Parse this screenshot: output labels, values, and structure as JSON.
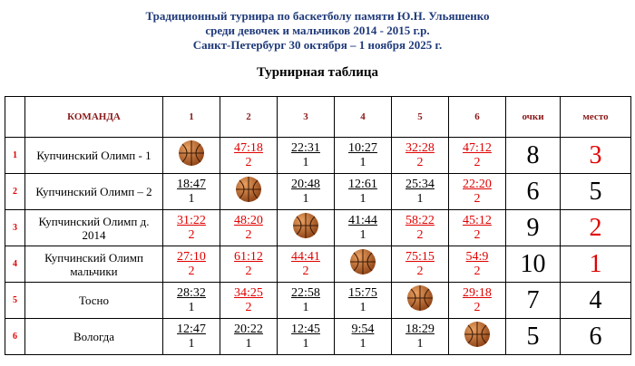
{
  "header": {
    "lines": [
      "Традиционный турнира по баскетболу памяти Ю.Н. Ульяшенко",
      "среди девочек и мальчиков 2014 -  2015 г.р.",
      "Санкт-Петербург 30 октября – 1 ноября 2025 г."
    ],
    "title": "Турнирная таблица"
  },
  "table": {
    "columns": [
      "КОМАНДА",
      "1",
      "2",
      "3",
      "4",
      "5",
      "6",
      "очки",
      "место"
    ],
    "rows": [
      {
        "num": "1",
        "team": "Купчинский Олимп - 1",
        "results": [
          null,
          {
            "score": "47:18",
            "points": 2,
            "color": "#e00000"
          },
          {
            "score": "22:31",
            "points": 1,
            "color": "#000000"
          },
          {
            "score": "10:27",
            "points": 1,
            "color": "#000000"
          },
          {
            "score": "32:28",
            "points": 2,
            "color": "#e00000"
          },
          {
            "score": "47:12",
            "points": 2,
            "color": "#e00000"
          }
        ],
        "points": 8,
        "place": 3,
        "place_color": "#e00000"
      },
      {
        "num": "2",
        "team": "Купчинский Олимп – 2",
        "results": [
          {
            "score": "18:47",
            "points": 1,
            "color": "#000000"
          },
          null,
          {
            "score": "20:48",
            "points": 1,
            "color": "#000000"
          },
          {
            "score": "12:61",
            "points": 1,
            "color": "#000000"
          },
          {
            "score": "25:34",
            "points": 1,
            "color": "#000000"
          },
          {
            "score": "22:20",
            "points": 2,
            "color": "#e00000"
          }
        ],
        "points": 6,
        "place": 5,
        "place_color": "#000000"
      },
      {
        "num": "3",
        "team": "Купчинский Олимп д. 2014",
        "results": [
          {
            "score": "31:22",
            "points": 2,
            "color": "#e00000"
          },
          {
            "score": "48:20",
            "points": 2,
            "color": "#e00000"
          },
          null,
          {
            "score": "41:44",
            "points": 1,
            "color": "#000000"
          },
          {
            "score": "58:22",
            "points": 2,
            "color": "#e00000"
          },
          {
            "score": "45:12",
            "points": 2,
            "color": "#e00000"
          }
        ],
        "points": 9,
        "place": 2,
        "place_color": "#e00000"
      },
      {
        "num": "4",
        "team": "Купчинский Олимп мальчики",
        "results": [
          {
            "score": "27:10",
            "points": 2,
            "color": "#e00000"
          },
          {
            "score": "61:12",
            "points": 2,
            "color": "#e00000"
          },
          {
            "score": "44:41",
            "points": 2,
            "color": "#e00000"
          },
          null,
          {
            "score": "75:15",
            "points": 2,
            "color": "#e00000"
          },
          {
            "score": "54:9",
            "points": 2,
            "color": "#e00000"
          }
        ],
        "points": 10,
        "place": 1,
        "place_color": "#e00000"
      },
      {
        "num": "5",
        "team": "Тосно",
        "results": [
          {
            "score": "28:32",
            "points": 1,
            "color": "#000000"
          },
          {
            "score": "34:25",
            "points": 2,
            "color": "#e00000"
          },
          {
            "score": "22:58",
            "points": 1,
            "color": "#000000"
          },
          {
            "score": "15:75",
            "points": 1,
            "color": "#000000"
          },
          null,
          {
            "score": "29:18",
            "points": 2,
            "color": "#e00000"
          }
        ],
        "points": 7,
        "place": 4,
        "place_color": "#000000"
      },
      {
        "num": "6",
        "team": "Вологда",
        "results": [
          {
            "score": "12:47",
            "points": 1,
            "color": "#000000"
          },
          {
            "score": "20:22",
            "points": 1,
            "color": "#000000"
          },
          {
            "score": "12:45",
            "points": 1,
            "color": "#000000"
          },
          {
            "score": "9:54",
            "points": 1,
            "color": "#000000"
          },
          {
            "score": "18:29",
            "points": 1,
            "color": "#000000"
          },
          null
        ],
        "points": 5,
        "place": 6,
        "place_color": "#000000"
      }
    ]
  }
}
